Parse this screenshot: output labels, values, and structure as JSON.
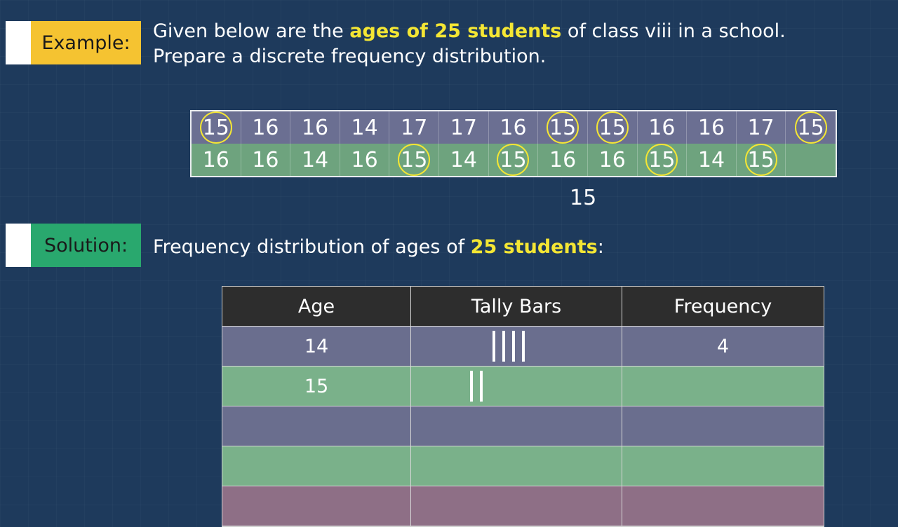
{
  "example": {
    "label": "Example:",
    "line1_pre": "Given below are the ",
    "line1_highlight": "ages of 25 students",
    "line1_post": " of class viii in a school.",
    "line2": "Prepare a discrete frequency distribution."
  },
  "data_rows": [
    [
      "15",
      "16",
      "16",
      "14",
      "17",
      "17",
      "16",
      "15",
      "15",
      "16",
      "16",
      "17",
      "15"
    ],
    [
      "16",
      "16",
      "14",
      "16",
      "15",
      "14",
      "15",
      "16",
      "16",
      "15",
      "14",
      "15",
      ""
    ]
  ],
  "highlighted_value": "15",
  "count_note": "15",
  "solution": {
    "label": "Solution:",
    "text_pre": "Frequency distribution of ages of ",
    "text_highlight": "25 students",
    "text_post": ":"
  },
  "table": {
    "headers": [
      "Age",
      "Tally Bars",
      "Frequency"
    ],
    "rows": [
      {
        "age": "14",
        "tally": 4,
        "frequency": "4"
      },
      {
        "age": "15",
        "tally": 2,
        "frequency": ""
      },
      {
        "age": "",
        "tally": 0,
        "frequency": ""
      },
      {
        "age": "",
        "tally": 0,
        "frequency": ""
      }
    ]
  },
  "colors": {
    "background": "#1e3a5c",
    "example_label": "#f5c331",
    "solution_label": "#29a86e",
    "highlight_text": "#f4e634",
    "circle": "#f4e634"
  }
}
